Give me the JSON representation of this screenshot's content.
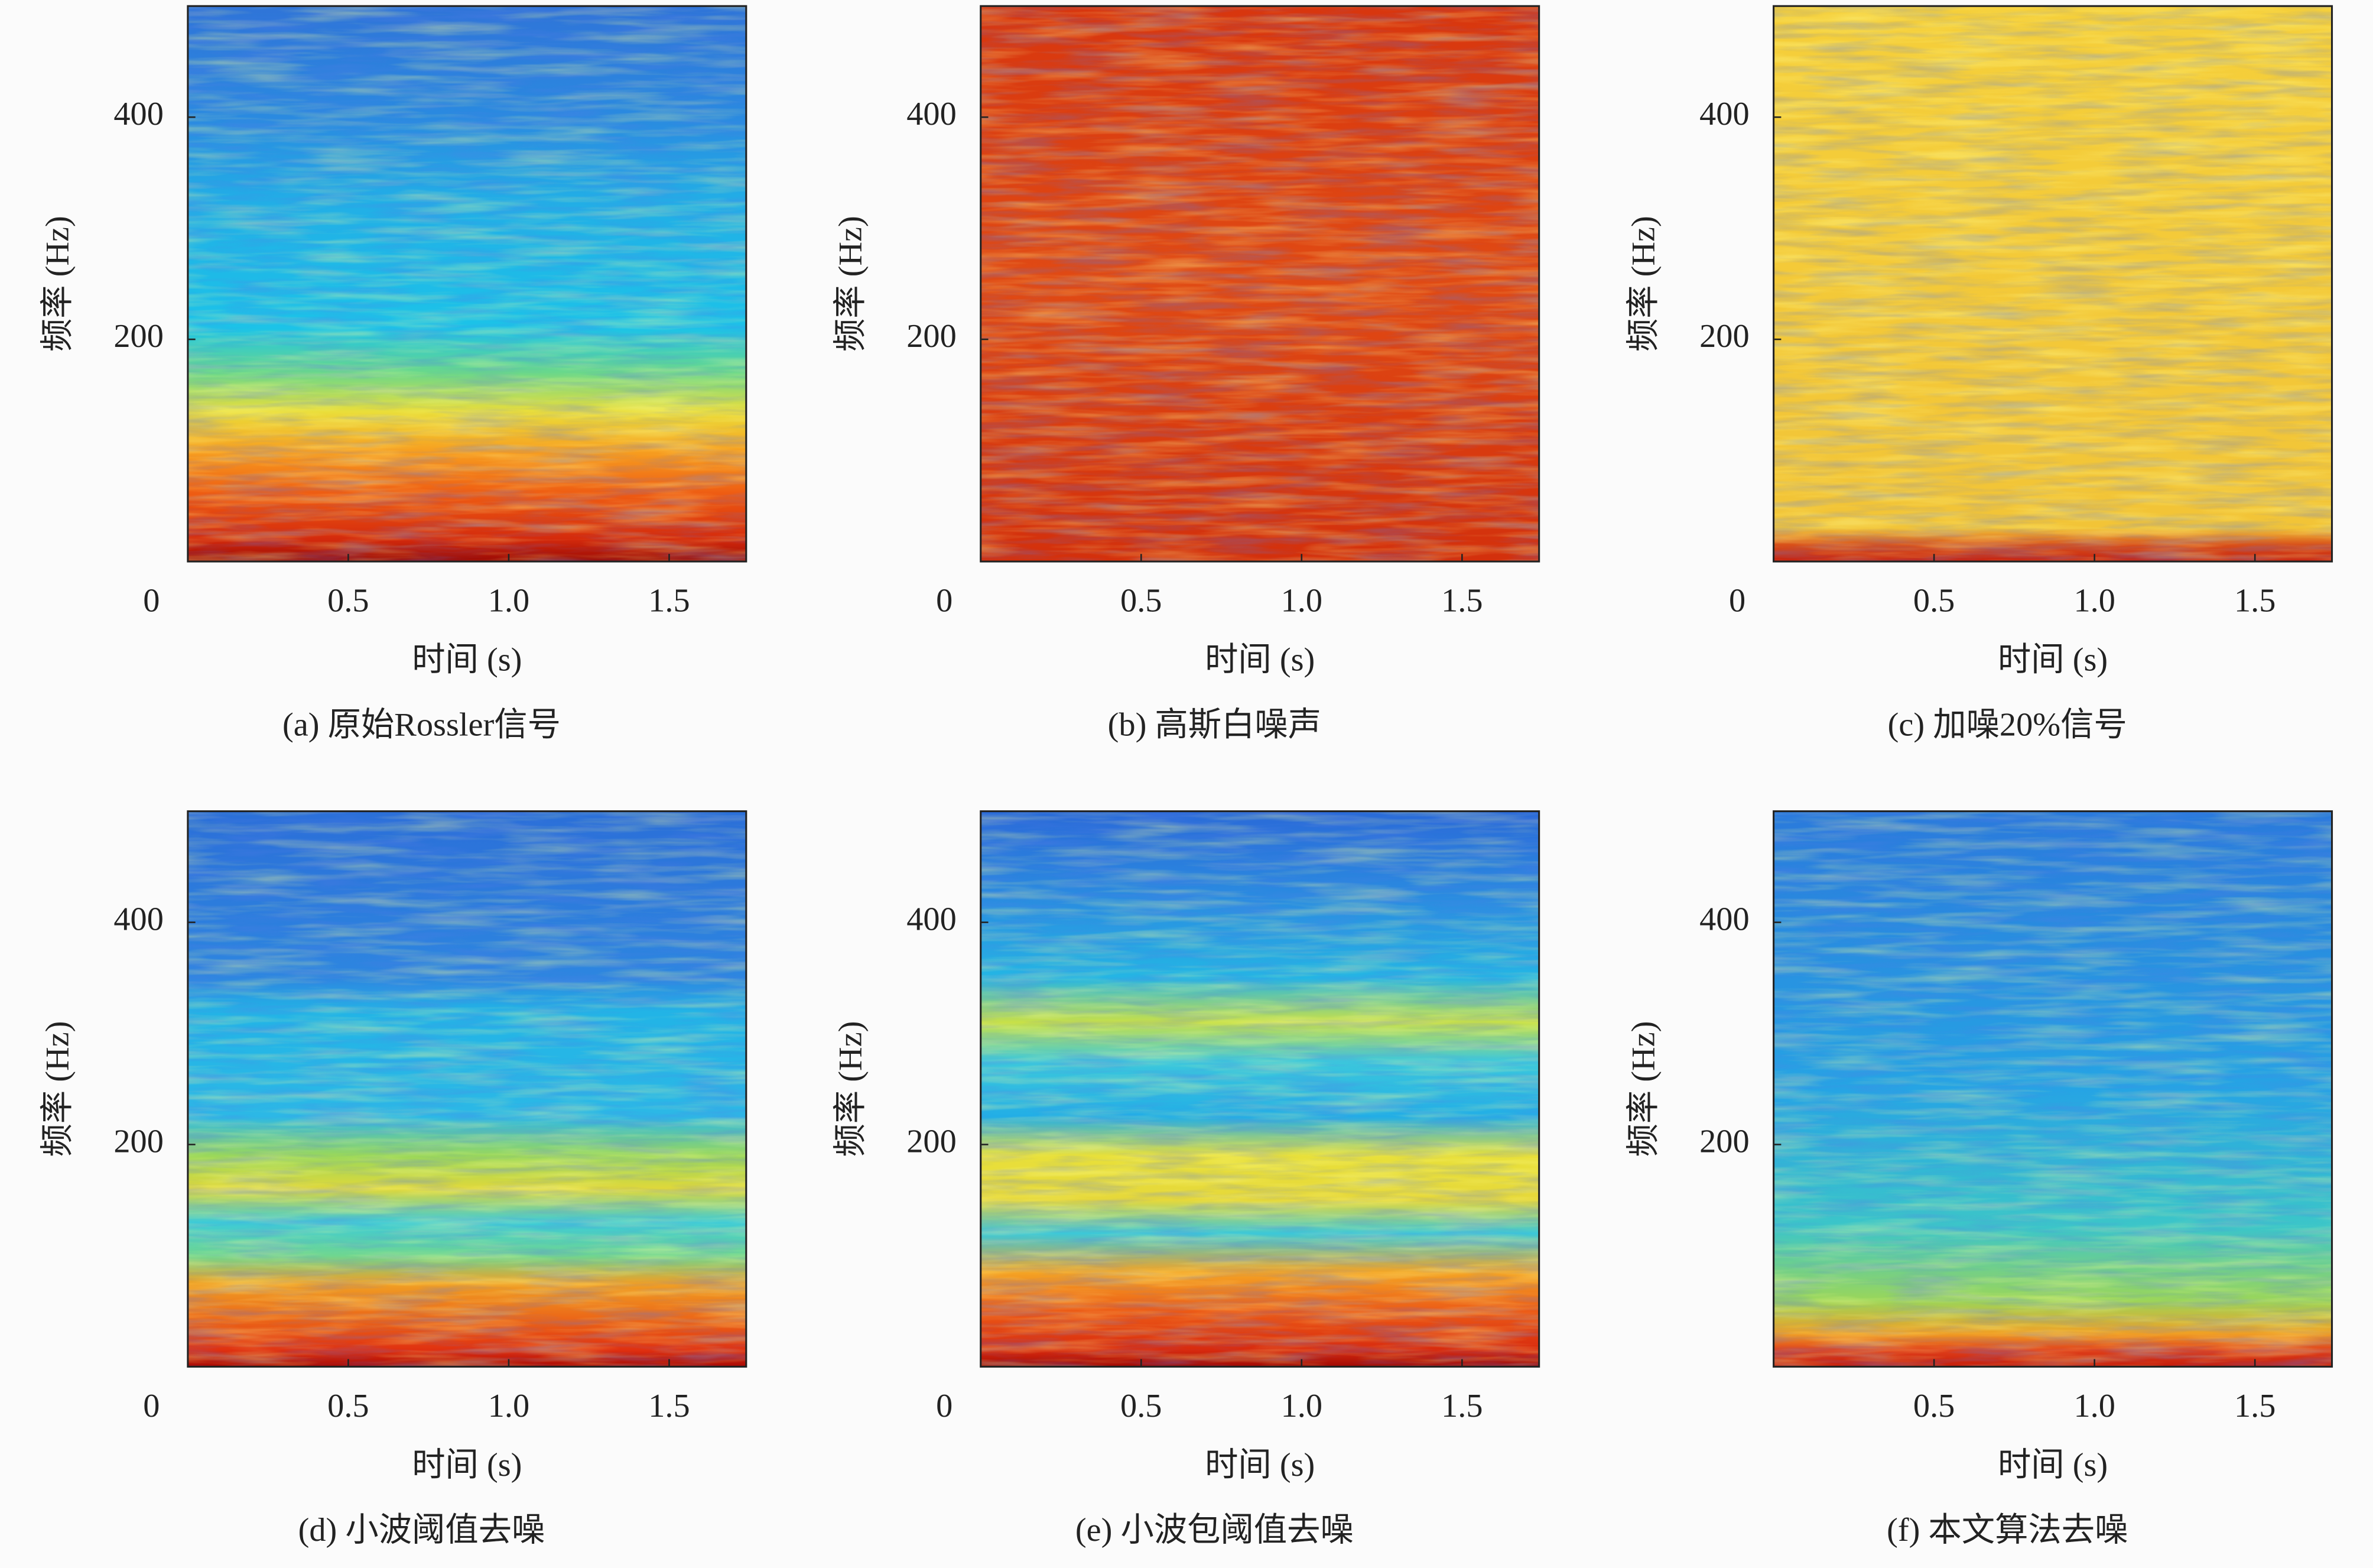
{
  "chart_data": [
    {
      "type": "heatmap",
      "title": "(a) 原始Rossler信号",
      "xlabel": "时间 (s)",
      "ylabel": "频率 (Hz)",
      "xlim": [
        0,
        1.74
      ],
      "ylim": [
        0,
        500
      ],
      "xticks": [
        0,
        0.5,
        {
          "value": 1,
          "label": "1.0"
        },
        1.5
      ],
      "yticks": [
        200,
        400
      ]
    },
    {
      "type": "heatmap",
      "title": "(b) 高斯白噪声",
      "xlabel": "时间 (s)",
      "ylabel": "频率 (Hz)",
      "xlim": [
        0,
        1.74
      ],
      "ylim": [
        0,
        500
      ],
      "xticks": [
        0,
        0.5,
        {
          "value": 1,
          "label": "1.0"
        },
        1.5
      ],
      "yticks": [
        200,
        400
      ]
    },
    {
      "type": "heatmap",
      "title": "(c) 加噪20%信号",
      "xlabel": "时间 (s)",
      "ylabel": "频率 (Hz)",
      "xlim": [
        0,
        1.74
      ],
      "ylim": [
        0,
        500
      ],
      "xticks": [
        0,
        0.5,
        {
          "value": 1,
          "label": "1.0"
        },
        1.5
      ],
      "yticks": [
        200,
        400
      ]
    },
    {
      "type": "heatmap",
      "title": "(d) 小波阈值去噪",
      "xlabel": "时间 (s)",
      "ylabel": "频率 (Hz)",
      "xlim": [
        0,
        1.74
      ],
      "ylim": [
        0,
        500
      ],
      "xticks": [
        0,
        0.5,
        {
          "value": 1,
          "label": "1.0"
        },
        1.5
      ],
      "yticks": [
        200,
        400
      ]
    },
    {
      "type": "heatmap",
      "title": "(e) 小波包阈值去噪",
      "xlabel": "时间 (s)",
      "ylabel": "频率 (Hz)",
      "xlim": [
        0,
        1.74
      ],
      "ylim": [
        0,
        500
      ],
      "xticks": [
        0,
        0.5,
        {
          "value": 1,
          "label": "1.0"
        },
        1.5
      ],
      "yticks": [
        200,
        400
      ]
    },
    {
      "type": "heatmap",
      "title": "(f) 本文算法去噪",
      "xlabel": "时间 (s)",
      "ylabel": "频率 (Hz)",
      "xlim": [
        0,
        1.74
      ],
      "ylim": [
        0,
        500
      ],
      "xticks": [
        0.5,
        {
          "value": 1,
          "label": "1.0"
        },
        1.5
      ],
      "yticks": [
        200,
        400
      ]
    }
  ]
}
